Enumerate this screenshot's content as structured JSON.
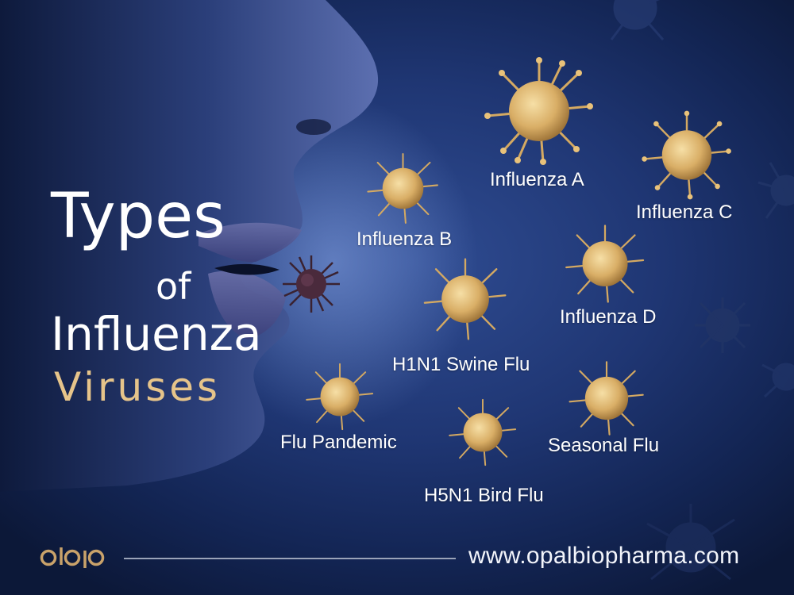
{
  "title": {
    "line1": "Types",
    "line2": "of",
    "line3": "Influenza",
    "line4": "Viruses"
  },
  "virus_labels": {
    "influenza_a": "Influenza A",
    "influenza_b": "Influenza B",
    "influenza_c": "Influenza C",
    "influenza_d": "Influenza D",
    "h1n1": "H1N1 Swine Flu",
    "flu_pandemic": "Flu Pandemic",
    "h5n1": "H5N1 Bird Flu",
    "seasonal": "Seasonal Flu"
  },
  "footer": {
    "website": "www.opalbiopharma.com",
    "logo_icon": "opal-logo-icon"
  },
  "colors": {
    "background": "#1f3673",
    "accent_gold": "#e6c48a",
    "virus_gold": "#e8c27a",
    "text": "#ffffff"
  }
}
